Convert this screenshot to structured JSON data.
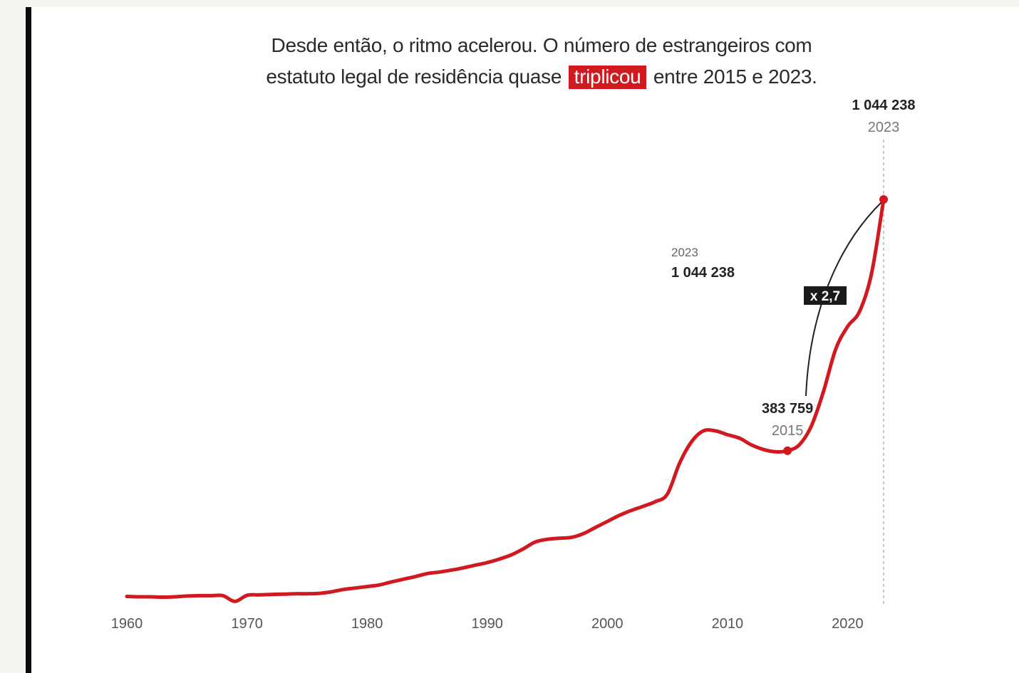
{
  "headline": {
    "part1": "Desde então, o ritmo acelerou. O número de estrangeiros com estatuto legal de residência quase",
    "highlight": "triplicou",
    "part2": "entre 2015 e 2023."
  },
  "colors": {
    "line": "#d11a1f",
    "highlight_bg": "#d11a1f",
    "connector": "#222222",
    "badge_bg": "#1a1a1a",
    "frame_bar": "#0b0b0b"
  },
  "chart_data": {
    "type": "line",
    "title": "",
    "xlabel": "",
    "ylabel": "",
    "xlim": [
      1960,
      2023
    ],
    "ylim": [
      0,
      1044238
    ],
    "grid": false,
    "x_ticks": [
      "1960",
      "1970",
      "1980",
      "1990",
      "2000",
      "2010",
      "2020"
    ],
    "series": [
      {
        "x": [
          1960,
          1961,
          1962,
          1963,
          1964,
          1965,
          1966,
          1967,
          1968,
          1969,
          1970,
          1971,
          1972,
          1973,
          1974,
          1975,
          1976,
          1977,
          1978,
          1979,
          1980,
          1981,
          1982,
          1983,
          1984,
          1985,
          1986,
          1987,
          1988,
          1989,
          1990,
          1991,
          1992,
          1993,
          1994,
          1995,
          1996,
          1997,
          1998,
          1999,
          2000,
          2001,
          2002,
          2003,
          2004,
          2005,
          2006,
          2007,
          2008,
          2009,
          2010,
          2011,
          2012,
          2013,
          2014,
          2015,
          2016,
          2017,
          2018,
          2019,
          2020,
          2021,
          2022,
          2023
        ],
        "y": [
          1000,
          0,
          0,
          -1000,
          0,
          2000,
          3000,
          3000,
          3000,
          -12000,
          4000,
          5000,
          6000,
          7000,
          8000,
          8000,
          9000,
          13000,
          19000,
          23000,
          27000,
          31000,
          39000,
          46000,
          53000,
          61000,
          65000,
          70000,
          76000,
          83000,
          90000,
          99000,
          110000,
          126000,
          144000,
          151000,
          154000,
          156000,
          166000,
          182000,
          198000,
          214000,
          227000,
          238000,
          250000,
          270000,
          350000,
          407000,
          436000,
          436000,
          426000,
          417000,
          399000,
          387000,
          381000,
          383759,
          400000,
          450000,
          540000,
          650000,
          710000,
          750000,
          850000,
          1044238
        ]
      }
    ],
    "annotations": {
      "end": {
        "value": "1 044 238",
        "year": "2023"
      },
      "mid": {
        "year": "2023",
        "value": "1 044 238"
      },
      "start": {
        "value": "383 759",
        "year": "2015"
      },
      "multiplier": "x 2,7"
    }
  }
}
